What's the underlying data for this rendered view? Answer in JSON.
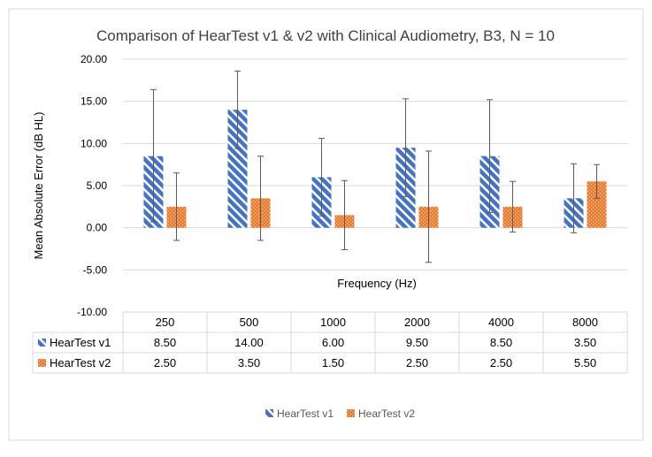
{
  "chart_data": {
    "type": "bar",
    "title": "Comparison of HearTest v1 & v2 with Clinical Audiometry, B3, N = 10",
    "xlabel": "Frequency (Hz)",
    "ylabel": "Mean Absolute Error (dB HL)",
    "ylim": [
      -10,
      20
    ],
    "yticks": [
      20,
      15,
      10,
      5,
      0,
      -5,
      -10
    ],
    "ytick_labels": [
      "20.00",
      "15.00",
      "10.00",
      "5.00",
      "0.00",
      "-5.00",
      "-10.00"
    ],
    "categories": [
      "250",
      "500",
      "1000",
      "2000",
      "4000",
      "8000"
    ],
    "grid": true,
    "legend_position": "bottom",
    "data_table": true,
    "series": [
      {
        "name": "HearTest v1",
        "color": "#4472c4",
        "pattern": "diagonal-stripes",
        "values": [
          8.5,
          14.0,
          6.0,
          9.5,
          8.5,
          3.5
        ],
        "value_labels": [
          "8.50",
          "14.00",
          "6.00",
          "9.50",
          "8.50",
          "3.50"
        ],
        "error_low": [
          0.7,
          9.4,
          1.4,
          3.7,
          1.8,
          -0.6
        ],
        "error_high": [
          16.4,
          18.6,
          10.6,
          15.3,
          15.2,
          7.6
        ]
      },
      {
        "name": "HearTest v2",
        "color": "#ed7d31",
        "pattern": "dots",
        "values": [
          2.5,
          3.5,
          1.5,
          2.5,
          2.5,
          5.5
        ],
        "value_labels": [
          "2.50",
          "3.50",
          "1.50",
          "2.50",
          "2.50",
          "5.50"
        ],
        "error_low": [
          -1.5,
          -1.5,
          -2.6,
          -4.1,
          -0.5,
          3.5
        ],
        "error_high": [
          6.5,
          8.5,
          5.6,
          9.1,
          5.5,
          7.5
        ]
      }
    ]
  }
}
